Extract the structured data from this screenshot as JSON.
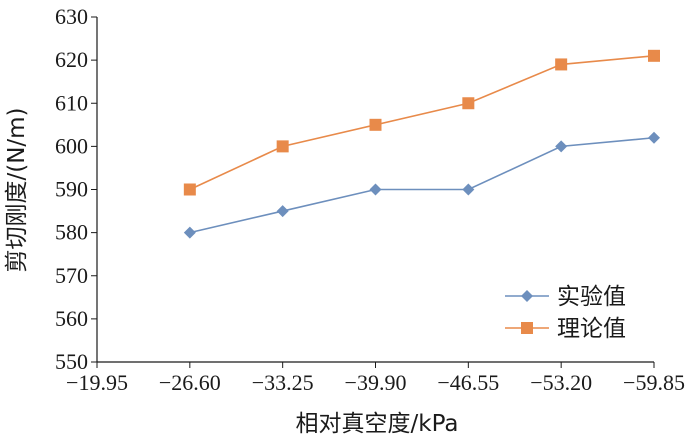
{
  "chart_data": {
    "type": "line",
    "xlabel": "相对真空度/kPa",
    "ylabel": "剪切刚度/(N/m)",
    "categories": [
      "−19.95",
      "−26.60",
      "−33.25",
      "−39.90",
      "−46.55",
      "−53.20",
      "−59.85"
    ],
    "ylim": [
      550,
      630
    ],
    "ytick_labels": [
      "550",
      "560",
      "570",
      "580",
      "590",
      "600",
      "610",
      "620",
      "630"
    ],
    "grid": false,
    "legend_position": "bottom-right",
    "series": [
      {
        "name": "实验值",
        "color": "#6d8fbd",
        "marker": "diamond",
        "x": [
          "−26.60",
          "−33.25",
          "−39.90",
          "−46.55",
          "−53.20",
          "−59.85"
        ],
        "values": [
          580,
          585,
          590,
          590,
          600,
          602
        ]
      },
      {
        "name": "理论值",
        "color": "#e88a4a",
        "marker": "square",
        "x": [
          "−26.60",
          "−33.25",
          "−39.90",
          "−46.55",
          "−53.20",
          "−59.85"
        ],
        "values": [
          590,
          600,
          605,
          610,
          619,
          621
        ]
      }
    ]
  }
}
